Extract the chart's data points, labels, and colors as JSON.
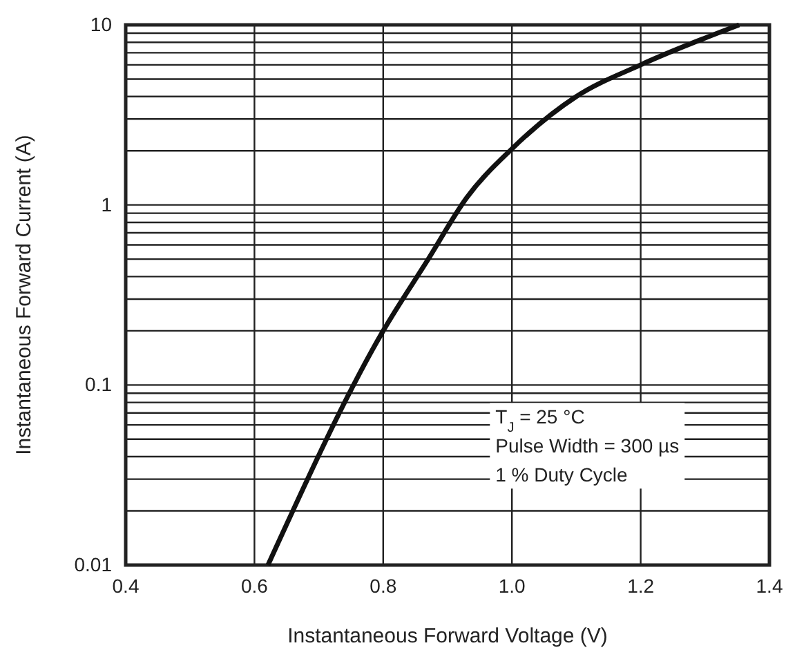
{
  "chart_data": {
    "type": "line",
    "xlabel": "Instantaneous Forward Voltage (V)",
    "ylabel": "Instantaneous Forward Current (A)",
    "x": [
      0.621,
      0.8,
      0.87,
      0.93,
      1.0,
      1.1,
      1.2,
      1.353
    ],
    "series": [
      {
        "color": "#111111",
        "values": [
          0.01,
          0.2,
          0.5,
          1.1,
          2.05,
          4.0,
          6.0,
          10
        ]
      }
    ],
    "xlim": [
      0.4,
      1.4
    ],
    "xticks": [
      0.4,
      0.6,
      0.8,
      {
        "value": 1,
        "label": "1.0"
      },
      1.2,
      1.4
    ],
    "ylim": [
      0.01,
      10
    ],
    "yticks": [
      0.01,
      0.1,
      1,
      10
    ],
    "log": "y",
    "grid": true,
    "marker": "none",
    "line_style": "solid",
    "annotations": [
      "T$_{J}$ = 25 °C",
      "Pulse Width = 300 µs",
      "1 % Duty Cycle"
    ]
  }
}
